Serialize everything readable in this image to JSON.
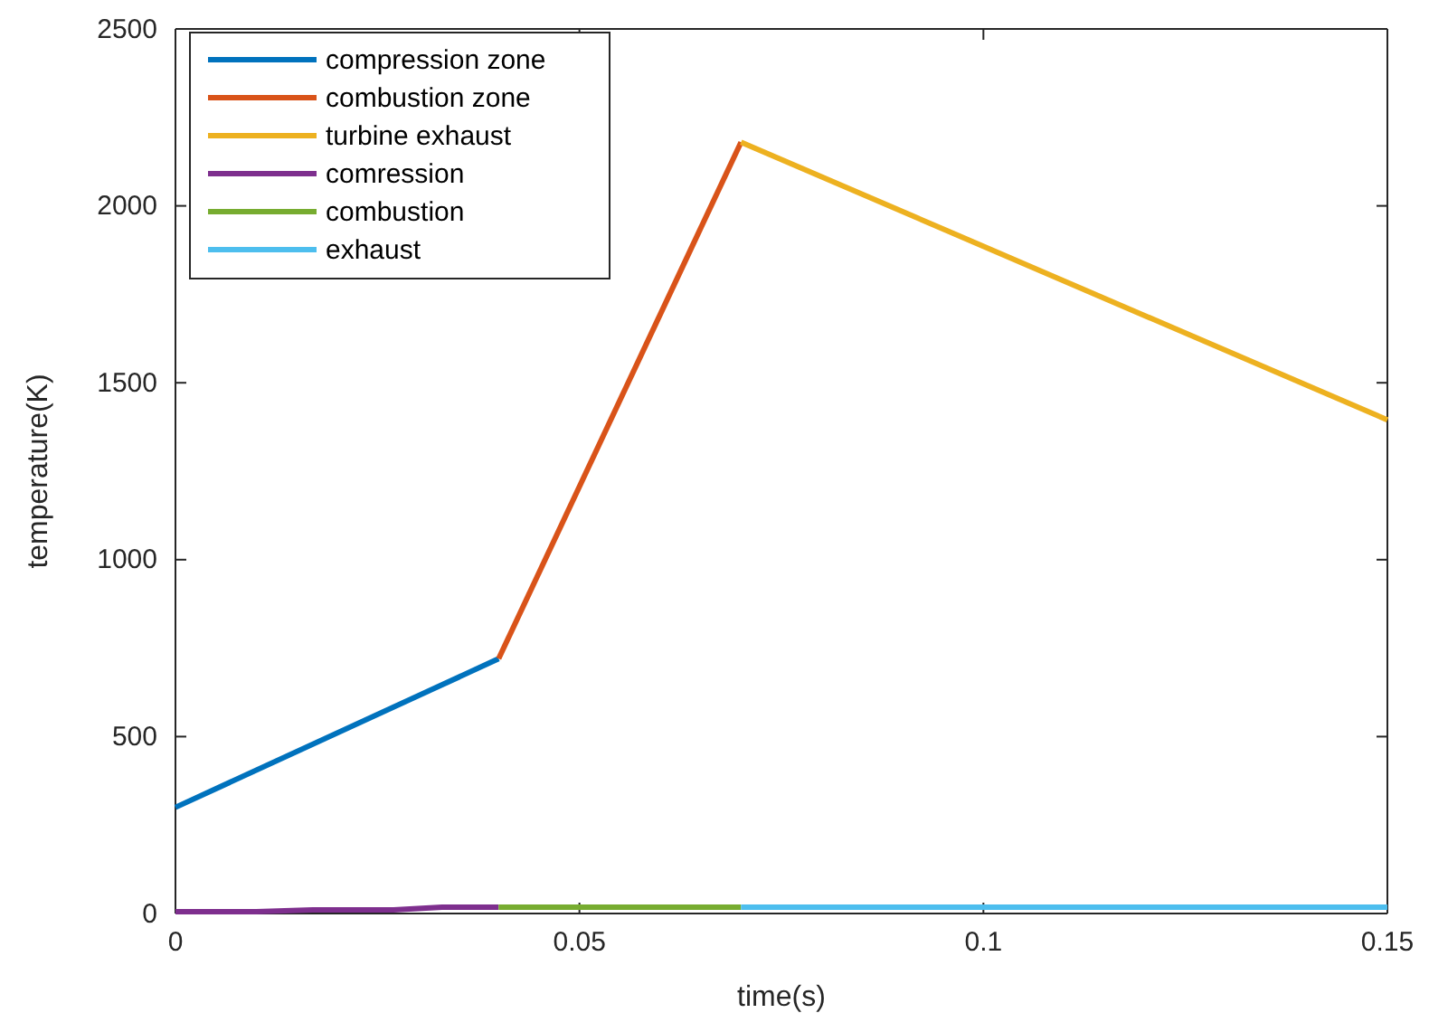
{
  "chart_data": {
    "type": "line",
    "xlabel": "time(s)",
    "ylabel": "temperature(K)",
    "xlim": [
      0,
      0.15
    ],
    "xticks": [
      0,
      0.05,
      0.1,
      0.15
    ],
    "ylim": [
      0,
      2500
    ],
    "yticks": [
      0,
      500,
      1000,
      1500,
      2000,
      2500
    ],
    "grid": false,
    "legend": "top left",
    "series": [
      {
        "name": "compression zone",
        "color": "#0072bd",
        "x": [
          0,
          0.04
        ],
        "values": [
          300,
          720
        ]
      },
      {
        "name": "combustion zone",
        "color": "#d95319",
        "x": [
          0.04,
          0.07
        ],
        "values": [
          720,
          2180
        ]
      },
      {
        "name": "turbine exhaust",
        "color": "#edb120",
        "x": [
          0.07,
          0.15
        ],
        "values": [
          2180,
          1395
        ]
      },
      {
        "name": "comression",
        "color": "#7e2f8e",
        "x": [
          0,
          0.01,
          0.017,
          0.027,
          0.033,
          0.04
        ],
        "values": [
          5,
          5,
          10,
          10,
          18,
          18
        ]
      },
      {
        "name": "combustion",
        "color": "#77ac30",
        "x": [
          0.04,
          0.07
        ],
        "values": [
          18,
          18
        ]
      },
      {
        "name": "exhaust",
        "color": "#4dbeee",
        "x": [
          0.07,
          0.15
        ],
        "values": [
          18,
          18
        ]
      }
    ]
  }
}
